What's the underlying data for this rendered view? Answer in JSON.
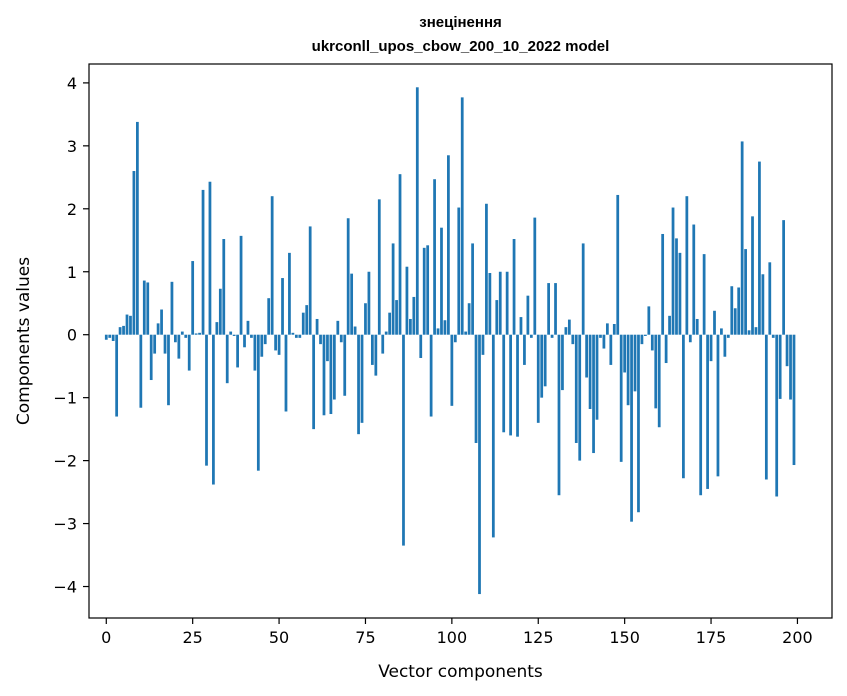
{
  "chart_data": {
    "type": "bar",
    "title": "знецінення",
    "subtitle": "ukrconll_upos_cbow_200_10_2022 model",
    "xlabel": "Vector components",
    "ylabel": "Components values",
    "xlim": [
      -5,
      210
    ],
    "ylim": [
      -4.5,
      4.3
    ],
    "xticks": [
      0,
      25,
      50,
      75,
      100,
      125,
      150,
      175,
      200
    ],
    "yticks": [
      -4,
      -3,
      -2,
      -1,
      0,
      1,
      2,
      3,
      4
    ],
    "ytick_labels": [
      "−4",
      "−3",
      "−2",
      "−1",
      "0",
      "1",
      "2",
      "3",
      "4"
    ],
    "bar_color": "#1f77b4",
    "x": [
      0,
      1,
      2,
      3,
      4,
      5,
      6,
      7,
      8,
      9,
      10,
      11,
      12,
      13,
      14,
      15,
      16,
      17,
      18,
      19,
      20,
      21,
      22,
      23,
      24,
      25,
      26,
      27,
      28,
      29,
      30,
      31,
      32,
      33,
      34,
      35,
      36,
      37,
      38,
      39,
      40,
      41,
      42,
      43,
      44,
      45,
      46,
      47,
      48,
      49,
      50,
      51,
      52,
      53,
      54,
      55,
      56,
      57,
      58,
      59,
      60,
      61,
      62,
      63,
      64,
      65,
      66,
      67,
      68,
      69,
      70,
      71,
      72,
      73,
      74,
      75,
      76,
      77,
      78,
      79,
      80,
      81,
      82,
      83,
      84,
      85,
      86,
      87,
      88,
      89,
      90,
      91,
      92,
      93,
      94,
      95,
      96,
      97,
      98,
      99,
      100,
      101,
      102,
      103,
      104,
      105,
      106,
      107,
      108,
      109,
      110,
      111,
      112,
      113,
      114,
      115,
      116,
      117,
      118,
      119,
      120,
      121,
      122,
      123,
      124,
      125,
      126,
      127,
      128,
      129,
      130,
      131,
      132,
      133,
      134,
      135,
      136,
      137,
      138,
      139,
      140,
      141,
      142,
      143,
      144,
      145,
      146,
      147,
      148,
      149,
      150,
      151,
      152,
      153,
      154,
      155,
      156,
      157,
      158,
      159,
      160,
      161,
      162,
      163,
      164,
      165,
      166,
      167,
      168,
      169,
      170,
      171,
      172,
      173,
      174,
      175,
      176,
      177,
      178,
      179,
      180,
      181,
      182,
      183,
      184,
      185,
      186,
      187,
      188,
      189,
      190,
      191,
      192,
      193,
      194,
      195,
      196,
      197,
      198,
      199
    ],
    "values": [
      -0.08,
      -0.05,
      -0.1,
      -1.3,
      0.12,
      0.14,
      0.32,
      0.3,
      2.6,
      3.38,
      -1.16,
      0.86,
      0.83,
      -0.72,
      -0.3,
      0.18,
      0.4,
      -0.3,
      -1.12,
      0.84,
      -0.12,
      -0.38,
      0.05,
      -0.05,
      -0.57,
      1.17,
      0.02,
      0.03,
      2.3,
      -2.08,
      2.43,
      -2.38,
      0.2,
      0.73,
      1.52,
      -0.77,
      0.05,
      -0.02,
      -0.52,
      1.57,
      -0.2,
      0.22,
      -0.05,
      -0.57,
      -2.16,
      -0.35,
      -0.15,
      0.58,
      2.2,
      -0.25,
      -0.32,
      0.9,
      -1.22,
      1.3,
      0.03,
      -0.05,
      -0.05,
      0.35,
      0.47,
      1.72,
      -1.5,
      0.25,
      -0.15,
      -1.28,
      -0.42,
      -1.26,
      -1.03,
      0.22,
      -0.12,
      -0.97,
      1.85,
      0.97,
      0.13,
      -1.58,
      -1.4,
      0.5,
      1.0,
      -0.48,
      -0.65,
      2.15,
      -0.3,
      0.05,
      0.35,
      1.45,
      0.55,
      2.55,
      -3.35,
      1.08,
      0.25,
      0.6,
      3.93,
      -0.37,
      1.38,
      1.42,
      -1.3,
      2.47,
      0.1,
      1.7,
      0.23,
      2.85,
      -1.13,
      -0.12,
      2.02,
      3.77,
      0.05,
      0.5,
      1.45,
      -1.72,
      -4.12,
      -0.32,
      2.08,
      0.98,
      -3.22,
      0.55,
      1.0,
      -1.55,
      1.0,
      -1.6,
      1.52,
      -1.62,
      0.28,
      -0.48,
      0.62,
      -0.05,
      1.86,
      -1.4,
      -1.0,
      -0.82,
      0.82,
      -0.05,
      0.82,
      -2.55,
      -0.88,
      0.12,
      0.24,
      -0.15,
      -1.72,
      -2.0,
      1.45,
      -0.68,
      -1.18,
      -1.88,
      -1.35,
      -0.05,
      -0.22,
      0.18,
      -0.48,
      0.17,
      2.22,
      -2.02,
      -0.6,
      -1.12,
      -2.97,
      -0.9,
      -2.82,
      -0.15,
      -0.02,
      0.45,
      -0.25,
      -1.17,
      -1.47,
      1.6,
      -0.45,
      0.3,
      2.02,
      1.53,
      1.3,
      -2.28,
      2.2,
      -0.12,
      1.75,
      0.25,
      -2.55,
      1.28,
      -2.45,
      -0.42,
      0.38,
      -2.25,
      0.1,
      -0.35,
      -0.05,
      0.77,
      0.42,
      0.75,
      3.07,
      1.36,
      0.07,
      1.88,
      0.12,
      2.75,
      0.96,
      -2.3,
      1.15,
      -0.05,
      -2.57,
      -1.02,
      1.82,
      -0.5,
      -1.03,
      -2.07
    ]
  }
}
